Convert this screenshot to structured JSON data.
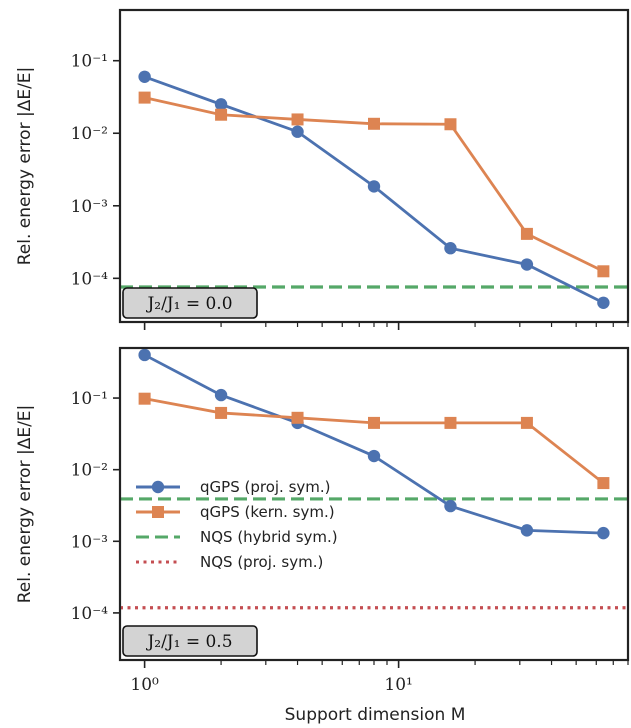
{
  "xlabel": "Support dimension M",
  "chart_data": [
    {
      "type": "line",
      "xscale": "log",
      "yscale": "log",
      "xlim": [
        0.8,
        80
      ],
      "ylim": [
        2.5e-05,
        0.5
      ],
      "ylabel": "Rel. energy error |ΔE/E|",
      "yticks": [
        {
          "value": 0.0001,
          "label": "10⁻⁴"
        },
        {
          "value": 0.001,
          "label": "10⁻³"
        },
        {
          "value": 0.01,
          "label": "10⁻²"
        },
        {
          "value": 0.1,
          "label": "10⁻¹"
        }
      ],
      "annotation": "J₂/J₁ = 0.0",
      "series": [
        {
          "key": "qgps_proj",
          "color": "#4c72b0",
          "marker": "circle",
          "x": [
            1,
            2,
            4,
            8,
            16,
            32,
            64
          ],
          "y": [
            0.06,
            0.025,
            0.0105,
            0.00185,
            0.00026,
            0.000155,
            4.6e-05
          ]
        },
        {
          "key": "qgps_kern",
          "color": "#dd8452",
          "marker": "square",
          "x": [
            1,
            2,
            4,
            8,
            16,
            32,
            64
          ],
          "y": [
            0.031,
            0.018,
            0.0155,
            0.0135,
            0.0133,
            0.00041,
            0.000125
          ]
        }
      ],
      "hlines": [
        {
          "key": "nqs_hybrid",
          "color": "#55a868",
          "style": "dashed",
          "y": 7.6e-05
        }
      ]
    },
    {
      "type": "line",
      "xscale": "log",
      "yscale": "log",
      "xlim": [
        0.8,
        80
      ],
      "ylim": [
        2.2e-05,
        0.5
      ],
      "ylabel": "Rel. energy error |ΔE/E|",
      "xticks": [
        {
          "value": 1,
          "label": "10⁰"
        },
        {
          "value": 10,
          "label": "10¹"
        }
      ],
      "yticks": [
        {
          "value": 0.0001,
          "label": "10⁻⁴"
        },
        {
          "value": 0.001,
          "label": "10⁻³"
        },
        {
          "value": 0.01,
          "label": "10⁻²"
        },
        {
          "value": 0.1,
          "label": "10⁻¹"
        }
      ],
      "annotation": "J₂/J₁ = 0.5",
      "series": [
        {
          "key": "qgps_proj",
          "color": "#4c72b0",
          "marker": "circle",
          "x": [
            1,
            2,
            4,
            8,
            16,
            32,
            64
          ],
          "y": [
            0.4,
            0.11,
            0.045,
            0.0155,
            0.0031,
            0.00142,
            0.0013
          ]
        },
        {
          "key": "qgps_kern",
          "color": "#dd8452",
          "marker": "square",
          "x": [
            1,
            2,
            4,
            8,
            16,
            32,
            64
          ],
          "y": [
            0.098,
            0.062,
            0.053,
            0.045,
            0.045,
            0.045,
            0.0065
          ]
        }
      ],
      "hlines": [
        {
          "key": "nqs_hybrid",
          "color": "#55a868",
          "style": "dashed",
          "y": 0.0039
        },
        {
          "key": "nqs_proj",
          "color": "#c44e52",
          "style": "dotted",
          "y": 0.000118
        }
      ],
      "legend": {
        "placement": "center-left",
        "entries": [
          {
            "label": "qGPS (proj. sym.)",
            "color": "#4c72b0",
            "style": "solid",
            "marker": "circle"
          },
          {
            "label": "qGPS (kern. sym.)",
            "color": "#dd8452",
            "style": "solid",
            "marker": "square"
          },
          {
            "label": "NQS (hybrid sym.)",
            "color": "#55a868",
            "style": "dashed",
            "marker": "none"
          },
          {
            "label": "NQS (proj. sym.)",
            "color": "#c44e52",
            "style": "dotted",
            "marker": "none"
          }
        ]
      }
    }
  ]
}
